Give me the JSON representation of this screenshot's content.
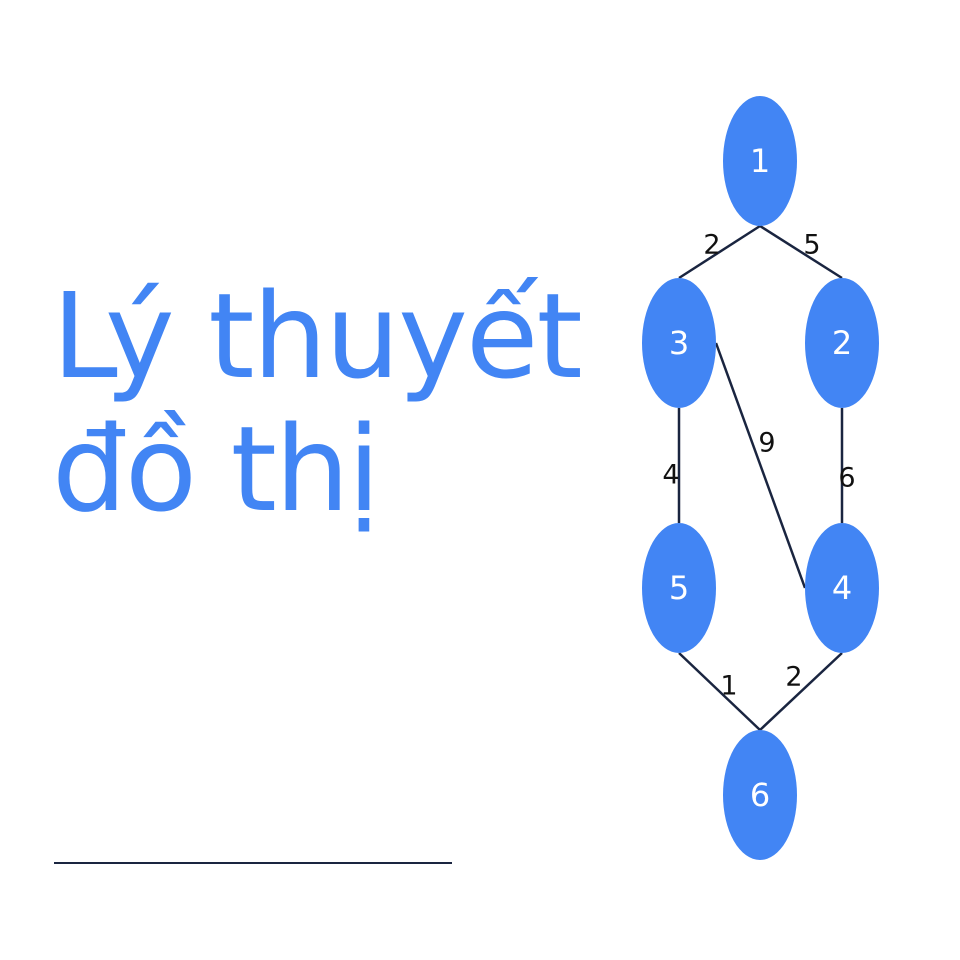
{
  "title": {
    "line1": "Lý thuyết",
    "line2": "đồ thị"
  },
  "colors": {
    "accent": "#4285f4",
    "edge": "#1a2540"
  },
  "graph": {
    "nodes": [
      {
        "id": "1",
        "label": "1"
      },
      {
        "id": "3",
        "label": "3"
      },
      {
        "id": "2",
        "label": "2"
      },
      {
        "id": "5",
        "label": "5"
      },
      {
        "id": "4",
        "label": "4"
      },
      {
        "id": "6",
        "label": "6"
      }
    ],
    "edges": [
      {
        "from": "1",
        "to": "3",
        "weight": "2"
      },
      {
        "from": "1",
        "to": "2",
        "weight": "5"
      },
      {
        "from": "3",
        "to": "5",
        "weight": "4"
      },
      {
        "from": "3",
        "to": "4",
        "weight": "9"
      },
      {
        "from": "2",
        "to": "4",
        "weight": "6"
      },
      {
        "from": "5",
        "to": "6",
        "weight": "1"
      },
      {
        "from": "4",
        "to": "6",
        "weight": "2"
      }
    ]
  }
}
